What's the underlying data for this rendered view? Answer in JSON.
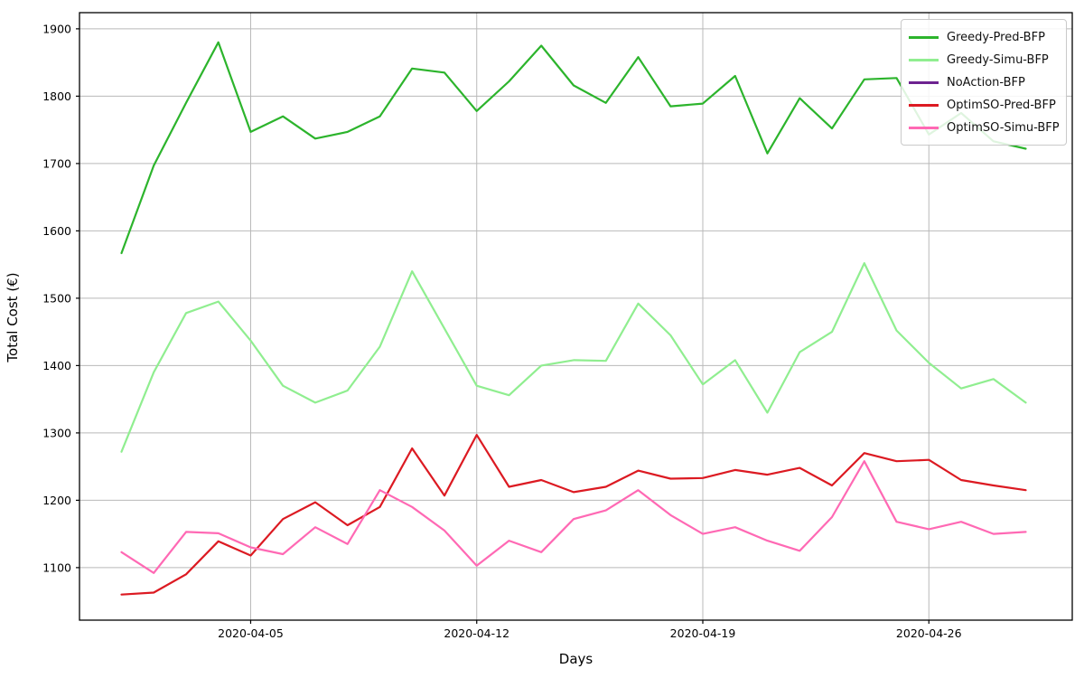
{
  "chart_data": {
    "type": "line",
    "title": "",
    "xlabel": "Days",
    "ylabel": "Total Cost (€)",
    "grid": true,
    "legend_position": "upper right",
    "ylim": [
      1022,
      1924
    ],
    "xlim_day_index": [
      -1.3,
      29.44
    ],
    "y_ticks": [
      1100,
      1200,
      1300,
      1400,
      1500,
      1600,
      1700,
      1800,
      1900
    ],
    "x_tick_labels": [
      "2020-04-05",
      "2020-04-12",
      "2020-04-19",
      "2020-04-26"
    ],
    "x_tick_day_index": [
      4,
      11,
      18,
      25
    ],
    "x_dates": [
      "2020-04-01",
      "2020-04-02",
      "2020-04-03",
      "2020-04-04",
      "2020-04-05",
      "2020-04-06",
      "2020-04-07",
      "2020-04-08",
      "2020-04-09",
      "2020-04-10",
      "2020-04-11",
      "2020-04-12",
      "2020-04-13",
      "2020-04-14",
      "2020-04-15",
      "2020-04-16",
      "2020-04-17",
      "2020-04-18",
      "2020-04-19",
      "2020-04-20",
      "2020-04-21",
      "2020-04-22",
      "2020-04-23",
      "2020-04-24",
      "2020-04-25",
      "2020-04-26",
      "2020-04-27",
      "2020-04-28",
      "2020-04-29"
    ],
    "series": [
      {
        "name": "Greedy-Pred-BFP",
        "color": "#2cb42c",
        "visible": true,
        "values": [
          1567,
          1697,
          1790,
          1880,
          1747,
          1770,
          1737,
          1747,
          1770,
          1841,
          1835,
          1778,
          1822,
          1875,
          1816,
          1790,
          1858,
          1785,
          1789,
          1830,
          1715,
          1797,
          1752,
          1825,
          1827,
          1743,
          1775,
          1733,
          1722
        ]
      },
      {
        "name": "Greedy-Simu-BFP",
        "color": "#90ee90",
        "visible": true,
        "values": [
          1272,
          1390,
          1478,
          1495,
          1437,
          1370,
          1345,
          1363,
          1428,
          1540,
          1455,
          1370,
          1356,
          1400,
          1408,
          1407,
          1492,
          1445,
          1372,
          1408,
          1330,
          1420,
          1450,
          1552,
          1452,
          1404,
          1366,
          1380,
          1345
        ]
      },
      {
        "name": "NoAction-BFP",
        "color": "#6d2390",
        "visible": false,
        "values": []
      },
      {
        "name": "OptimSO-Pred-BFP",
        "color": "#dc1a22",
        "visible": true,
        "values": [
          1060,
          1063,
          1090,
          1139,
          1118,
          1172,
          1197,
          1163,
          1190,
          1277,
          1207,
          1297,
          1220,
          1230,
          1212,
          1220,
          1244,
          1232,
          1233,
          1245,
          1238,
          1248,
          1222,
          1270,
          1258,
          1260,
          1230,
          1222,
          1215
        ]
      },
      {
        "name": "OptimSO-Simu-BFP",
        "color": "#ff69b4",
        "visible": true,
        "values": [
          1123,
          1092,
          1153,
          1151,
          1130,
          1120,
          1160,
          1135,
          1215,
          1190,
          1155,
          1103,
          1140,
          1123,
          1172,
          1185,
          1215,
          1178,
          1150,
          1160,
          1140,
          1125,
          1175,
          1258,
          1168,
          1157,
          1168,
          1150,
          1153
        ]
      }
    ]
  }
}
